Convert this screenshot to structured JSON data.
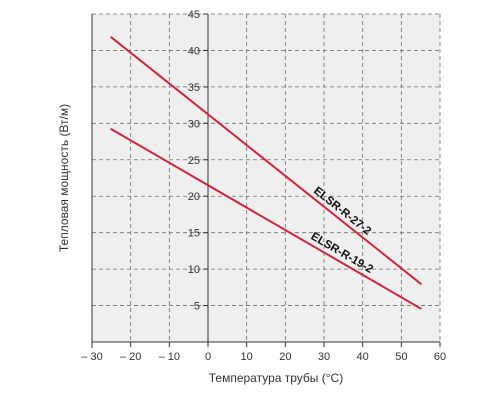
{
  "chart_data": {
    "type": "line",
    "title": "",
    "xlabel": "Температура трубы (°C)",
    "ylabel": "Тепловая мощность (Вт/м)",
    "xlim": [
      -30,
      60
    ],
    "ylim": [
      0,
      45
    ],
    "xticks": [
      -30,
      -20,
      -10,
      0,
      10,
      20,
      30,
      40,
      50,
      60
    ],
    "xtick_labels": [
      "– 30",
      "– 20",
      "– 10",
      "0",
      "10",
      "20",
      "30",
      "40",
      "50",
      "60"
    ],
    "yticks": [
      5,
      10,
      15,
      20,
      25,
      30,
      35,
      40,
      45
    ],
    "ytick_labels": [
      "5",
      "10",
      "15",
      "20",
      "25",
      "30",
      "35",
      "40",
      "45"
    ],
    "grid": "dashed",
    "legend": "inline labels along lines",
    "series": [
      {
        "name": "ELSR-R-27-2",
        "x": [
          -25,
          55
        ],
        "y": [
          41.8,
          8.0
        ],
        "color": "#d4243a"
      },
      {
        "name": "ELSR-R-19-2",
        "x": [
          -25,
          55
        ],
        "y": [
          29.2,
          4.6
        ],
        "color": "#d4243a"
      }
    ]
  },
  "colors": {
    "plot_background": "#efefef",
    "grid": "#6e6e6e",
    "axis": "#333333",
    "line": "#d4243a"
  }
}
